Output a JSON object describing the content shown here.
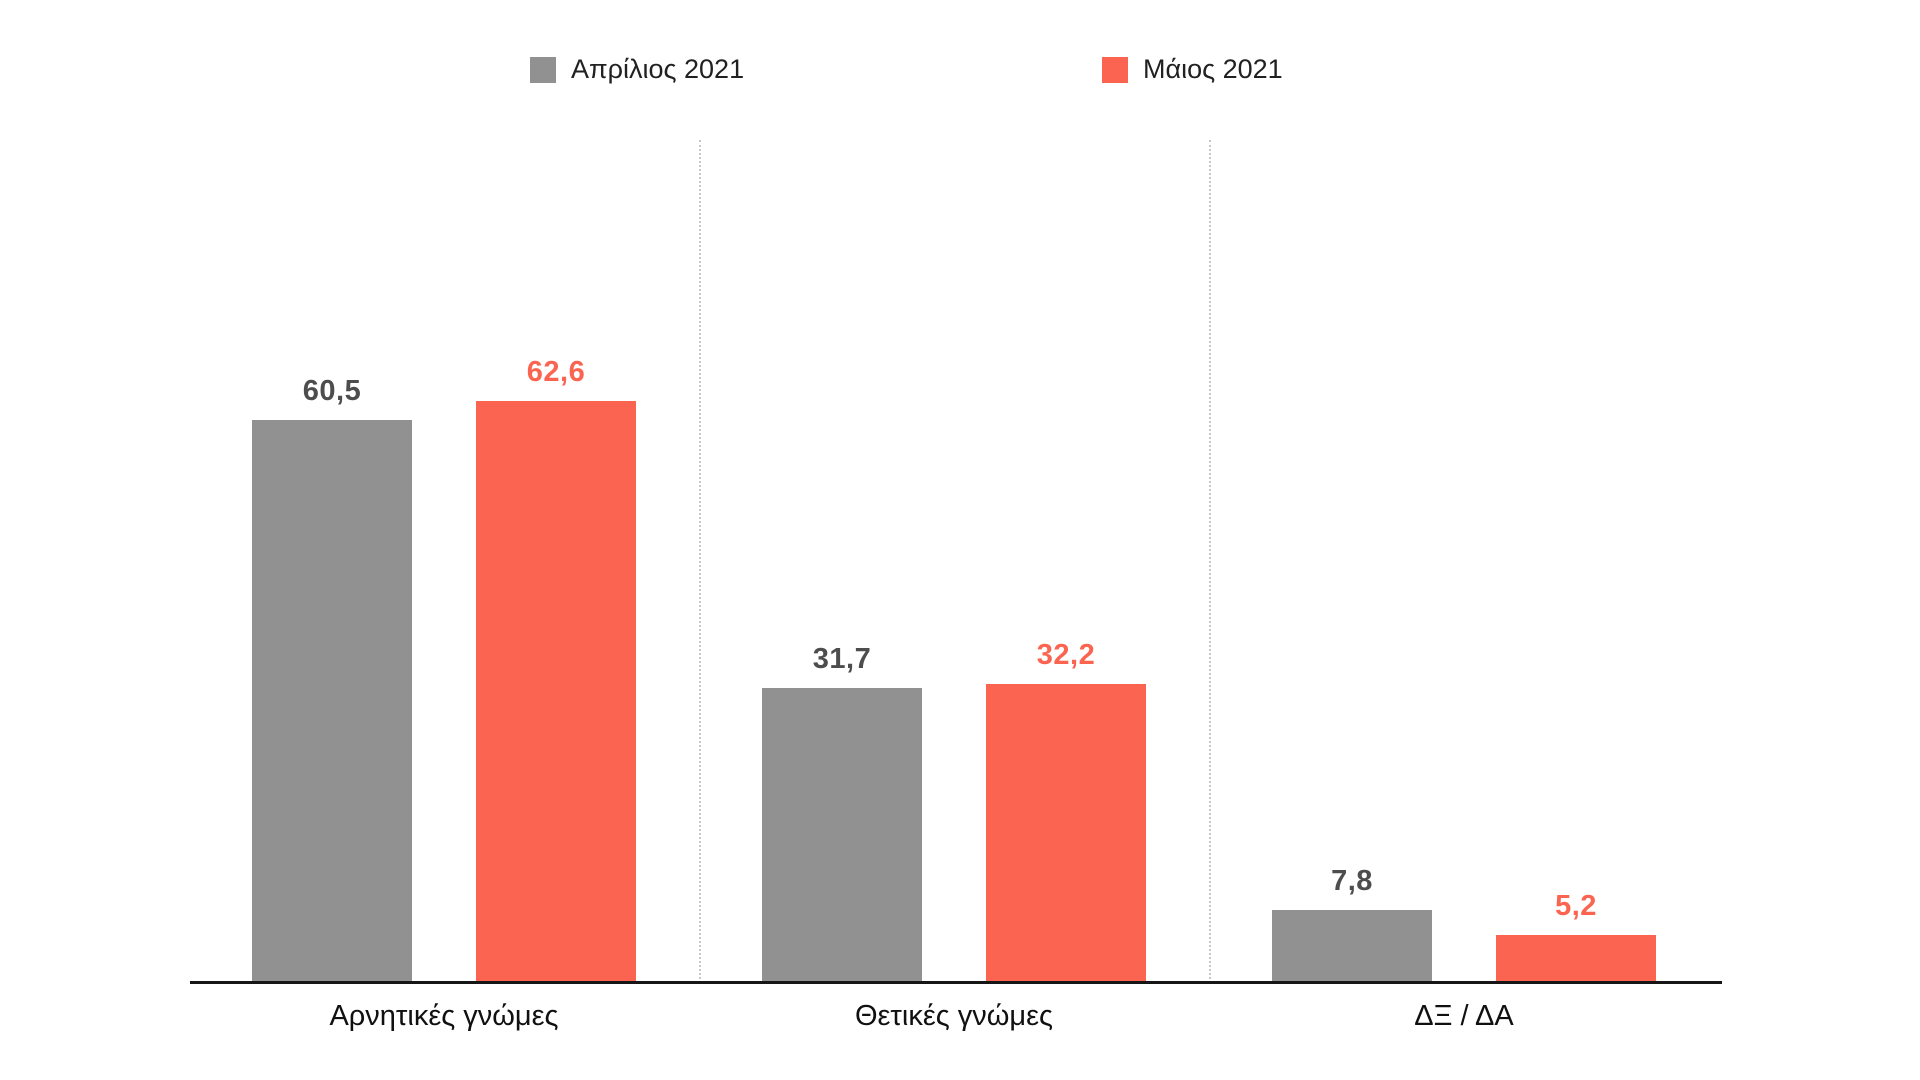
{
  "chart_data": {
    "type": "bar",
    "layout": "grouped-vertical",
    "categories": [
      "Αρνητικές γνώμες",
      "Θετικές γνώμες",
      "ΔΞ / ΔΑ"
    ],
    "series": [
      {
        "name": "Απρίλιος 2021",
        "color": "#919191",
        "label_color": "#4D4D4D",
        "values": [
          60.5,
          31.7,
          7.8
        ]
      },
      {
        "name": "Μάιος 2021",
        "color": "#FB6450",
        "label_color": "#FB6450",
        "values": [
          62.6,
          32.2,
          5.2
        ]
      }
    ],
    "value_labels": [
      [
        "60,5",
        "31,7",
        "7,8"
      ],
      [
        "62,6",
        "32,2",
        "5,2"
      ]
    ],
    "decimal_separator": ",",
    "axis": {
      "x_axis_line": true,
      "y_axis_visible": false,
      "ylim": [
        0,
        90
      ]
    },
    "grid": {
      "vertical_dotted_separators": true,
      "separator_color": "#C7C7C7"
    },
    "legend_position": "top",
    "background": "#FFFFFF"
  }
}
